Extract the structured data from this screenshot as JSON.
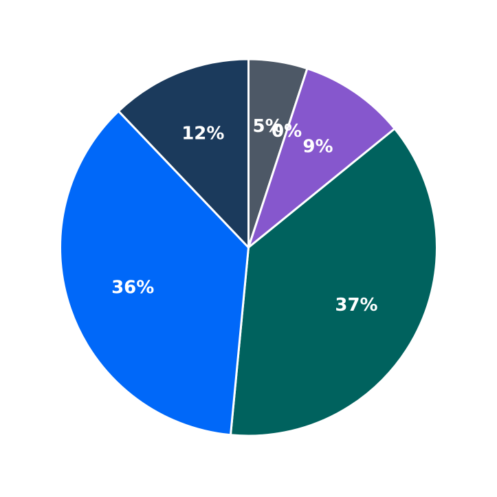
{
  "background_color": "#ffffff",
  "chart_data": {
    "type": "pie",
    "title": "",
    "legend": "none",
    "start": "12-oclock",
    "direction": "clockwise",
    "donut": false,
    "stroke_color": "#ffffff",
    "stroke_width": 3,
    "label_color": "#ffffff",
    "label_distance": 0.65,
    "slices": [
      {
        "pct_label": "5%",
        "value": 5,
        "color": "#4d5866"
      },
      {
        "pct_label": "0%",
        "value": 0,
        "color": null
      },
      {
        "pct_label": "9%",
        "value": 9,
        "color": "#8657cd"
      },
      {
        "pct_label": "37%",
        "value": 37,
        "color": "#00625e"
      },
      {
        "pct_label": "36%",
        "value": 36,
        "color": "#0068f9"
      },
      {
        "pct_label": "12%",
        "value": 12,
        "color": "#1b3a5c"
      }
    ]
  }
}
